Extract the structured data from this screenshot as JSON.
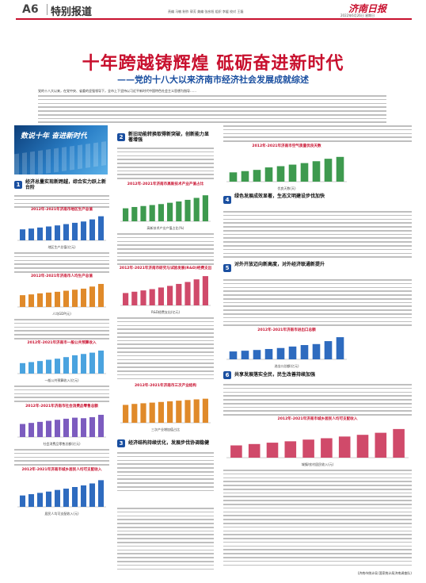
{
  "header": {
    "page_no": "A6",
    "section": "特别报道",
    "meta_line": "责编 马敏 制作 郭芳 美编 张彦旭 组织 李媛 校对 王磊",
    "masthead": "济南日报",
    "date_line": "2022年6月26日 星期日"
  },
  "headline": {
    "main": "十年跨越铸辉煌  砥砺奋进新时代",
    "sub": "——党的十八大以来济南市经济社会发展成就综述"
  },
  "lead": {
    "text": "党的十八大以来，在党中央、省委的坚强领导下，全市上下坚持以习近平新时代中国特色社会主义思想为指导……"
  },
  "photo": {
    "caption": "数说十年 奋进新时代"
  },
  "sections": [
    {
      "num": "1",
      "title": "经济总量实现新跨越，综合实力跃上新台阶"
    },
    {
      "num": "2",
      "title": "新旧动能转换取得新突破，创新能力显著增强"
    },
    {
      "num": "3",
      "title": "经济结构持续优化，发展步伐协调稳健"
    },
    {
      "num": "4",
      "title": "绿色发展成效显著，生态文明建设步伐加快"
    },
    {
      "num": "5",
      "title": "对外开放迈向新高度，对外经济联通新提升"
    },
    {
      "num": "6",
      "title": "共享发展落实全民，民生改善持续加强"
    }
  ],
  "charts": [
    {
      "title": "2012年-2021年济南市地区生产总值",
      "caption": "地区生产总值(亿元)",
      "bars": [
        0.42,
        0.45,
        0.49,
        0.53,
        0.57,
        0.62,
        0.67,
        0.72,
        0.8,
        0.92
      ],
      "color": "#2e6bbf"
    },
    {
      "title": "2012年-2021年济南市人均生产总值",
      "caption": "人均GDP(元)",
      "bars": [
        0.45,
        0.48,
        0.52,
        0.55,
        0.58,
        0.62,
        0.66,
        0.7,
        0.78,
        0.88
      ],
      "color": "#e08a2a"
    },
    {
      "title": "2012年-2021年济南市一般公共预算收入",
      "caption": "一般公共预算收入(亿元)",
      "bars": [
        0.4,
        0.44,
        0.48,
        0.53,
        0.57,
        0.63,
        0.7,
        0.75,
        0.8,
        0.88
      ],
      "color": "#4aa3df"
    },
    {
      "title": "2012年-2021年济南市社会消费品零售总额",
      "caption": "社会消费品零售总额(亿元)",
      "bars": [
        0.5,
        0.54,
        0.58,
        0.62,
        0.66,
        0.7,
        0.74,
        0.72,
        0.76,
        0.85
      ],
      "color": "#7c5cbf"
    },
    {
      "title": "2012年-2021年济南市城乡居民人均可支配收入",
      "caption": "居民人均可支配收入(元)",
      "bars": [
        0.35,
        0.39,
        0.43,
        0.47,
        0.52,
        0.56,
        0.61,
        0.66,
        0.72,
        0.82
      ],
      "color": "#2e6bbf"
    },
    {
      "title": "2012年-2021年济南市高新技术产业产值占比",
      "caption": "高新技术产业产值占比(%)",
      "bars": [
        0.4,
        0.44,
        0.47,
        0.5,
        0.53,
        0.57,
        0.61,
        0.66,
        0.72,
        0.8
      ],
      "color": "#3e9a4f"
    },
    {
      "title": "2012年-2021年济南市研究与试验发展(R&D)经费支出",
      "caption": "R&D经费支出(亿元)",
      "bars": [
        0.38,
        0.42,
        0.46,
        0.5,
        0.55,
        0.6,
        0.66,
        0.72,
        0.8,
        0.9
      ],
      "color": "#d04a6a"
    },
    {
      "title": "2012年-2021年济南市三次产业结构",
      "caption": "三次产业增加值占比",
      "bars": [
        0.55,
        0.58,
        0.6,
        0.62,
        0.64,
        0.66,
        0.68,
        0.7,
        0.72,
        0.74
      ],
      "color": "#e08a2a"
    },
    {
      "title": "2012年-2021年济南市空气质量优良天数",
      "caption": "优良天数(天)",
      "bars": [
        0.3,
        0.34,
        0.38,
        0.46,
        0.5,
        0.55,
        0.6,
        0.66,
        0.74,
        0.8
      ],
      "color": "#3e9a4f"
    },
    {
      "title": "2012年-2021年济南市进出口总额",
      "caption": "进出口总额(亿元)",
      "bars": [
        0.32,
        0.35,
        0.38,
        0.42,
        0.46,
        0.52,
        0.58,
        0.62,
        0.74,
        0.9
      ],
      "color": "#2e6bbf"
    },
    {
      "title": "2012年-2021年济南市城乡居民人均可支配收入",
      "caption": "城镇/农村居民收入(元)",
      "bars": [
        0.36,
        0.4,
        0.44,
        0.48,
        0.53,
        0.57,
        0.62,
        0.67,
        0.73,
        0.84
      ],
      "color": "#d04a6a"
    }
  ],
  "footer": {
    "source": "(济南市统计局 国家统计局济南调查队)"
  }
}
